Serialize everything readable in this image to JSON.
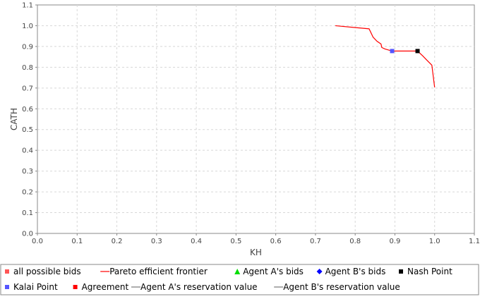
{
  "chart_data": {
    "type": "line",
    "xlabel": "KH",
    "ylabel": "CATH",
    "xlim": [
      0.0,
      1.1
    ],
    "ylim": [
      0.0,
      1.1
    ],
    "x_ticks": [
      "0.0",
      "0.1",
      "0.2",
      "0.3",
      "0.4",
      "0.5",
      "0.6",
      "0.7",
      "0.8",
      "0.9",
      "1.0",
      "1.1"
    ],
    "y_ticks": [
      "0.0",
      "0.1",
      "0.2",
      "0.3",
      "0.4",
      "0.5",
      "0.6",
      "0.7",
      "0.8",
      "0.9",
      "1.0",
      "1.1"
    ],
    "grid": true,
    "legend_position": "bottom",
    "series": [
      {
        "name": "Pareto efficient frontier",
        "color": "#ff0000",
        "points": [
          [
            0.75,
            1.0
          ],
          [
            0.835,
            0.985
          ],
          [
            0.845,
            0.945
          ],
          [
            0.855,
            0.925
          ],
          [
            0.865,
            0.912
          ],
          [
            0.867,
            0.895
          ],
          [
            0.875,
            0.888
          ],
          [
            0.893,
            0.878
          ],
          [
            0.957,
            0.878
          ],
          [
            0.97,
            0.855
          ],
          [
            0.98,
            0.835
          ],
          [
            0.993,
            0.81
          ],
          [
            1.0,
            0.703
          ]
        ]
      },
      {
        "name": "Nash Point",
        "color": "#000000",
        "points": [
          [
            0.957,
            0.878
          ]
        ]
      },
      {
        "name": "Kalai Point",
        "color": "#5555ff",
        "points": [
          [
            0.893,
            0.878
          ]
        ]
      }
    ],
    "legend": [
      {
        "label": "all possible bids",
        "symbol": "square",
        "color": "#ff5555"
      },
      {
        "label": "Pareto efficient frontier",
        "symbol": "line",
        "color": "#ff0000"
      },
      {
        "label": "Agent A's bids",
        "symbol": "triangle",
        "color": "#00dd00"
      },
      {
        "label": "Agent B's bids",
        "symbol": "diamond",
        "color": "#0000ff"
      },
      {
        "label": "Nash Point",
        "symbol": "square",
        "color": "#000000"
      },
      {
        "label": "Kalai Point",
        "symbol": "square",
        "color": "#5555ff"
      },
      {
        "label": "Agreement",
        "symbol": "square",
        "color": "#ff0000"
      },
      {
        "label": "Agent A's reservation value",
        "symbol": "line",
        "color": "#777777"
      },
      {
        "label": "Agent B's reservation value",
        "symbol": "line",
        "color": "#777777"
      }
    ]
  }
}
